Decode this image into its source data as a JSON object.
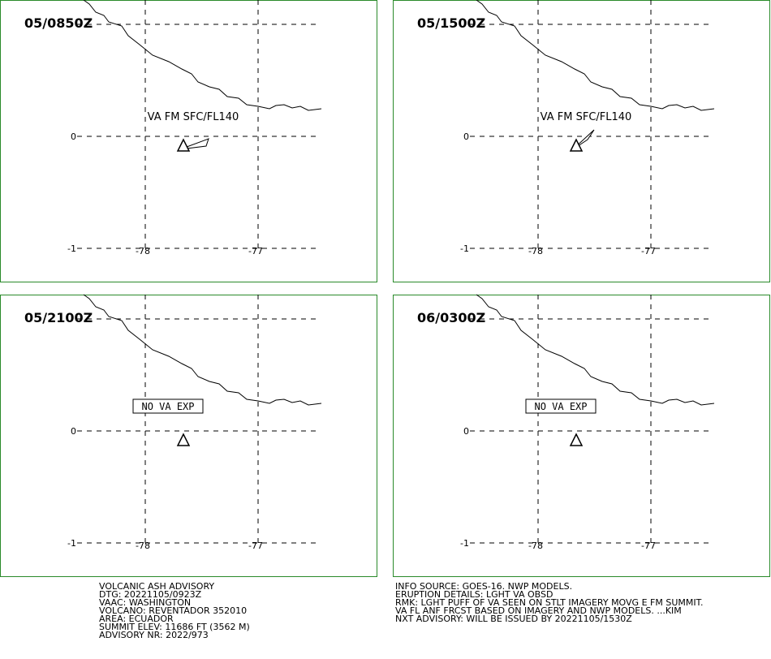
{
  "panels": [
    {
      "time": "05/0850Z",
      "label": "VA FM SFC/FL140",
      "boxed": false
    },
    {
      "time": "05/1500Z",
      "label": "VA FM SFC/FL140",
      "boxed": false
    },
    {
      "time": "05/2100Z",
      "label": "NO VA EXP",
      "boxed": true
    },
    {
      "time": "06/0300Z",
      "label": "NO VA EXP",
      "boxed": true
    }
  ],
  "grid": {
    "lat": [
      "0",
      "-1"
    ],
    "lon": [
      "-78",
      "-77"
    ]
  },
  "footer": {
    "left": [
      "VOLCANIC ASH ADVISORY",
      "DTG: 20221105/0923Z",
      "VAAC: WASHINGTON",
      "VOLCANO: REVENTADOR 352010",
      "AREA: ECUADOR",
      "SUMMIT ELEV: 11686 FT (3562 M)",
      "ADVISORY NR: 2022/973"
    ],
    "right": [
      "INFO SOURCE: GOES-16. NWP MODELS.",
      "ERUPTION DETAILS: LGHT VA OBSD",
      "RMK: LGHT PUFF OF VA SEEN ON STLT IMAGERY MOVG E FM SUMMIT.",
      "VA FL ANF FRCST BASED ON IMAGERY AND NWP MODELS. ...KIM",
      "NXT ADVISORY: WILL BE ISSUED BY 20221105/1530Z"
    ]
  }
}
